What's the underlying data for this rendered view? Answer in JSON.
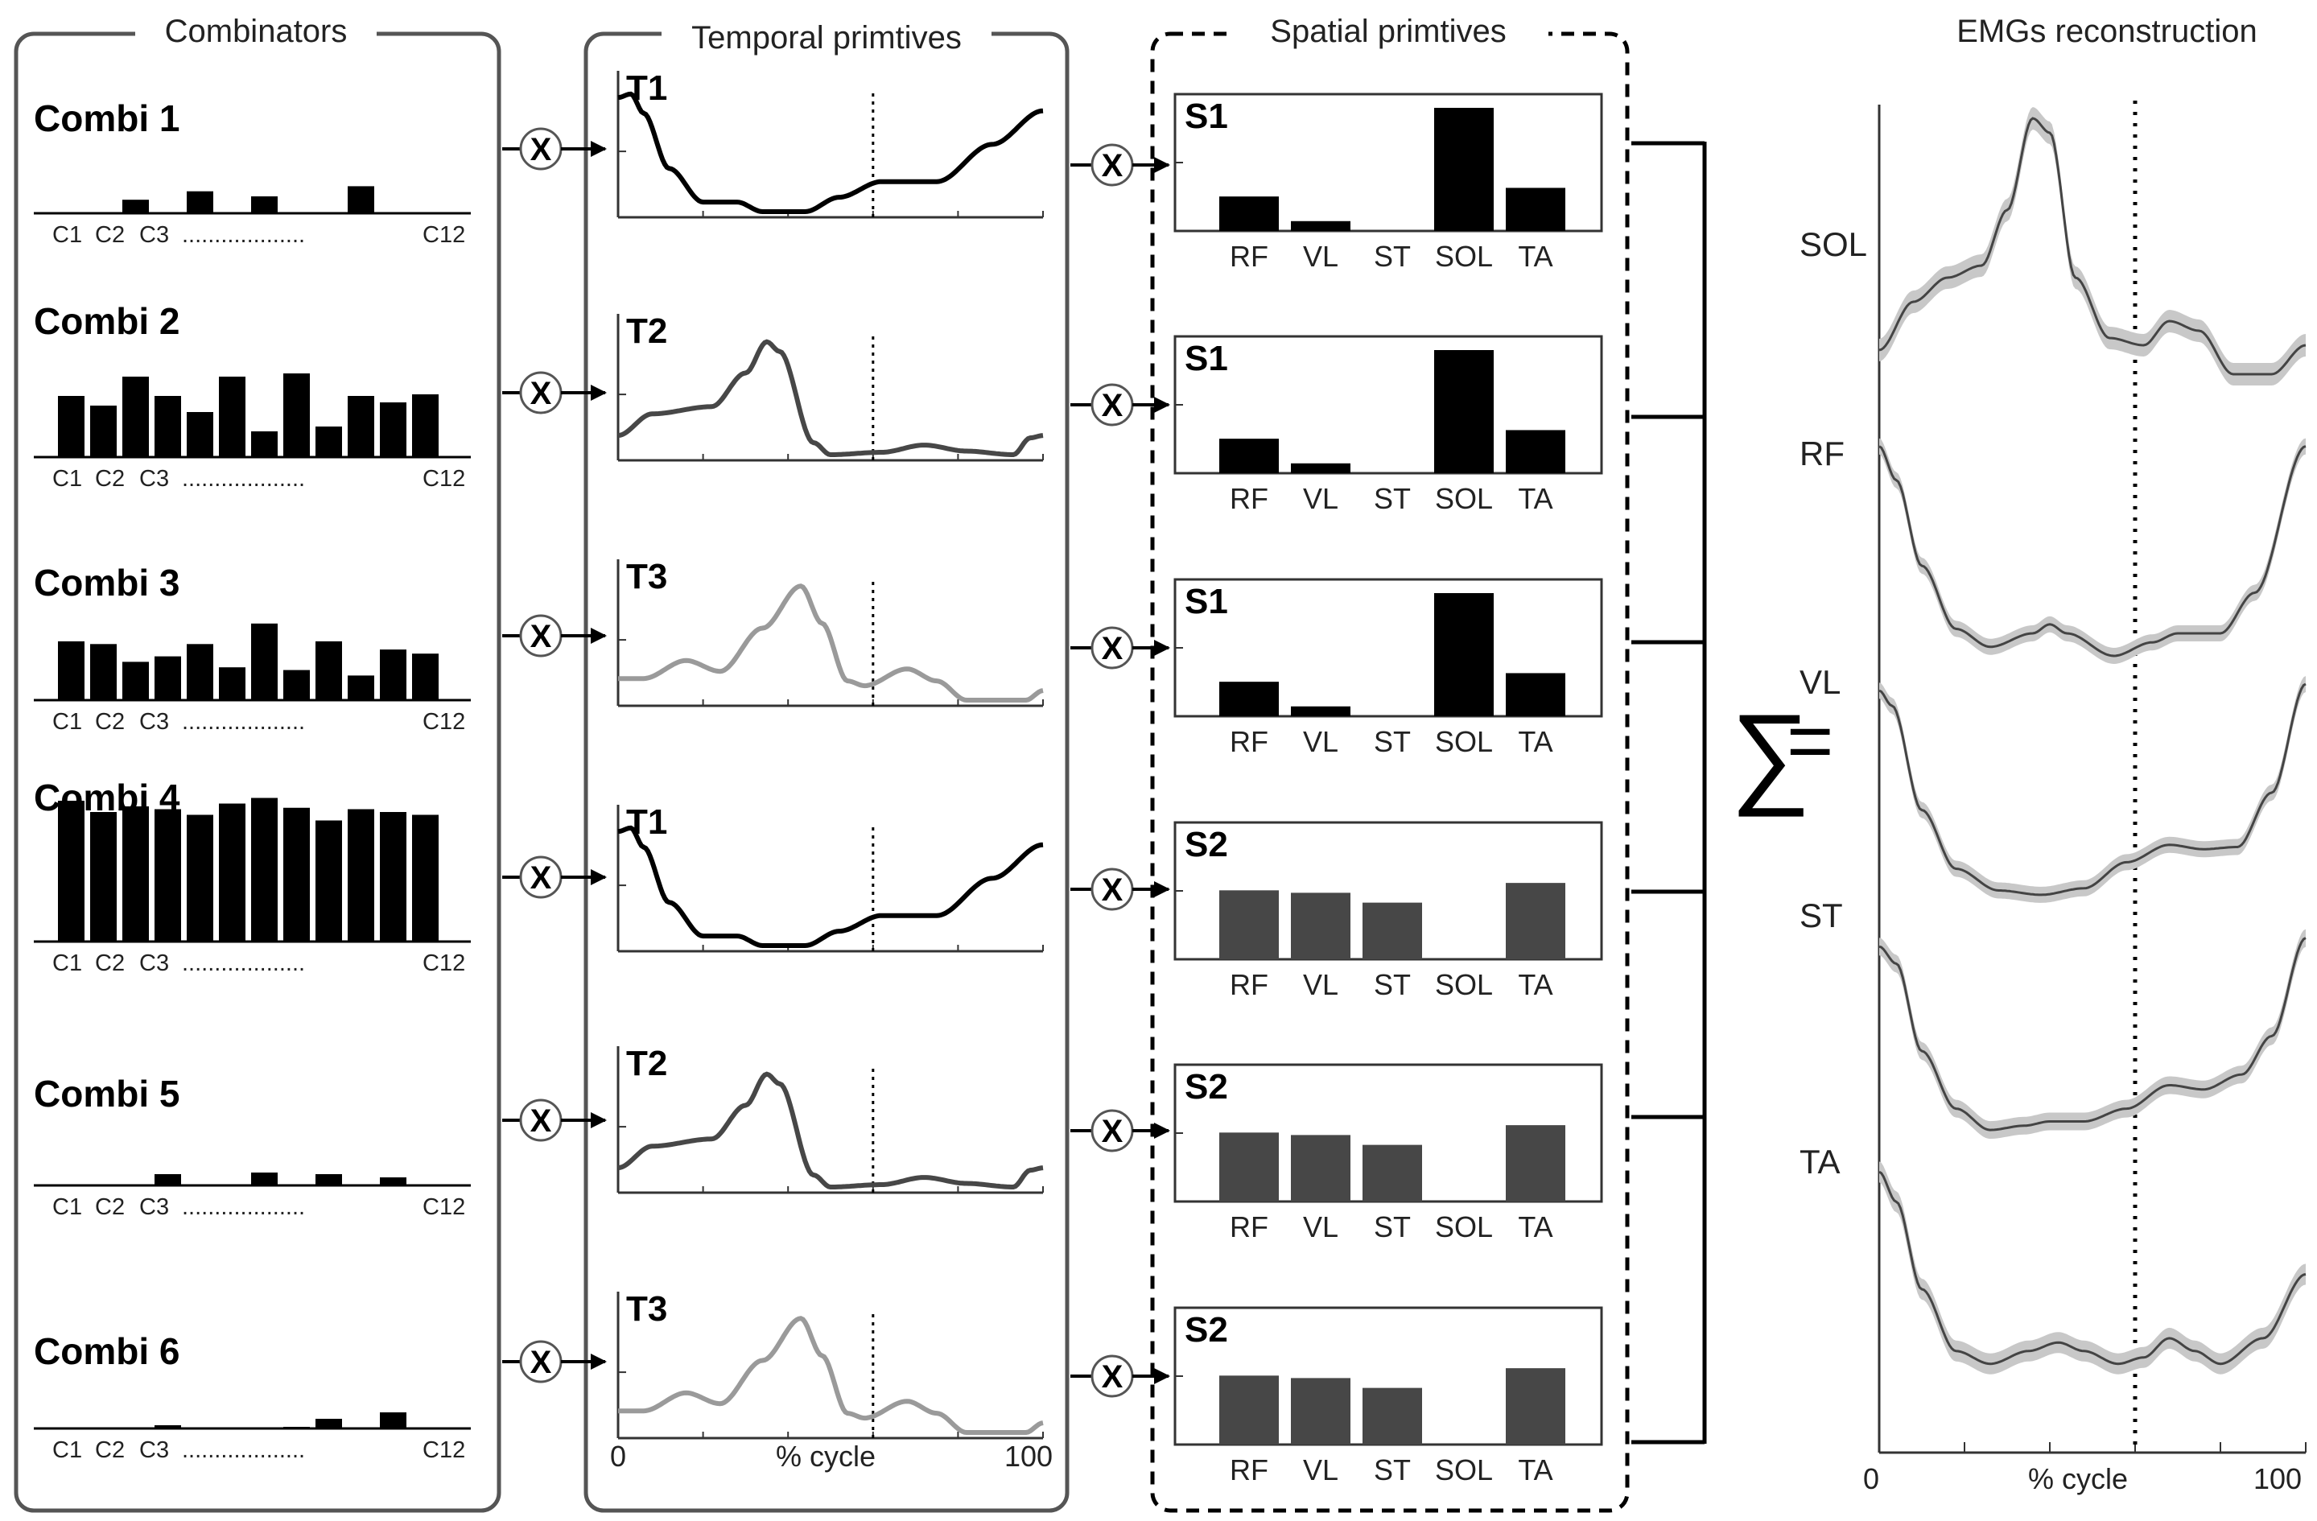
{
  "titles": {
    "combinators": "Combinators",
    "temporal": "Temporal primtives",
    "spatial": "Spatial primtives",
    "emg": "EMGs reconstruction"
  },
  "combinators": [
    {
      "label": "Combi 1",
      "weights": [
        0,
        0,
        0.08,
        0,
        0.13,
        0,
        0.1,
        0,
        0,
        0.16,
        0,
        0
      ]
    },
    {
      "label": "Combi 2",
      "weights": [
        0.38,
        0.32,
        0.5,
        0.38,
        0.28,
        0.5,
        0.16,
        0.52,
        0.19,
        0.38,
        0.34,
        0.39
      ]
    },
    {
      "label": "Combi 3",
      "weights": [
        0.43,
        0.41,
        0.28,
        0.32,
        0.41,
        0.24,
        0.56,
        0.22,
        0.43,
        0.18,
        0.37,
        0.34
      ]
    },
    {
      "label": "Combi 4",
      "weights": [
        1.0,
        0.92,
        0.96,
        0.94,
        0.9,
        0.98,
        1.02,
        0.95,
        0.86,
        0.94,
        0.92,
        0.9
      ]
    },
    {
      "label": "Combi 5",
      "weights": [
        0,
        0,
        0,
        0.07,
        0,
        0,
        0.08,
        0,
        0.07,
        0,
        0.05,
        0
      ]
    },
    {
      "label": "Combi 6",
      "weights": [
        0,
        0,
        0,
        0.02,
        0,
        0,
        0,
        0.01,
        0.06,
        0,
        0.1,
        0
      ]
    }
  ],
  "combi_axis": {
    "first": "C1",
    "second": "C2",
    "third": "C3",
    "last": "C12",
    "dots": "..................."
  },
  "temporal": [
    {
      "label": "T1",
      "shade": "black"
    },
    {
      "label": "T2",
      "shade": "darkgray"
    },
    {
      "label": "T3",
      "shade": "lightgray"
    },
    {
      "label": "T1",
      "shade": "black"
    },
    {
      "label": "T2",
      "shade": "darkgray"
    },
    {
      "label": "T3",
      "shade": "lightgray"
    }
  ],
  "temporal_axis": {
    "start": "0",
    "label": "% cycle",
    "end": "100",
    "stance_end_percent": 60
  },
  "muscles": [
    "RF",
    "VL",
    "ST",
    "SOL",
    "TA"
  ],
  "spatial": [
    {
      "label": "S1",
      "color": "#000000",
      "weights": [
        0.28,
        0.08,
        0,
        1.0,
        0.35
      ]
    },
    {
      "label": "S1",
      "color": "#000000",
      "weights": [
        0.28,
        0.08,
        0,
        1.0,
        0.35
      ]
    },
    {
      "label": "S1",
      "color": "#000000",
      "weights": [
        0.28,
        0.08,
        0,
        1.0,
        0.35
      ]
    },
    {
      "label": "S2",
      "color": "#474747",
      "weights": [
        0.56,
        0.54,
        0.46,
        0,
        0.62
      ]
    },
    {
      "label": "S2",
      "color": "#474747",
      "weights": [
        0.56,
        0.54,
        0.46,
        0,
        0.62
      ]
    },
    {
      "label": "S2",
      "color": "#474747",
      "weights": [
        0.56,
        0.54,
        0.46,
        0,
        0.62
      ]
    }
  ],
  "operators": {
    "multiply": "X",
    "sum": "∑",
    "equals": "="
  },
  "emg": {
    "muscles": [
      "SOL",
      "RF",
      "VL",
      "ST",
      "TA"
    ],
    "x_start": "0",
    "x_label": "% cycle",
    "x_end": "100",
    "stance_end_percent": 60
  },
  "colors": {
    "black": "#000000",
    "darkgray": "#474747",
    "lightgray": "#9a9a9a",
    "panel_border": "#555555",
    "emg_band": "#c8c8c8"
  }
}
